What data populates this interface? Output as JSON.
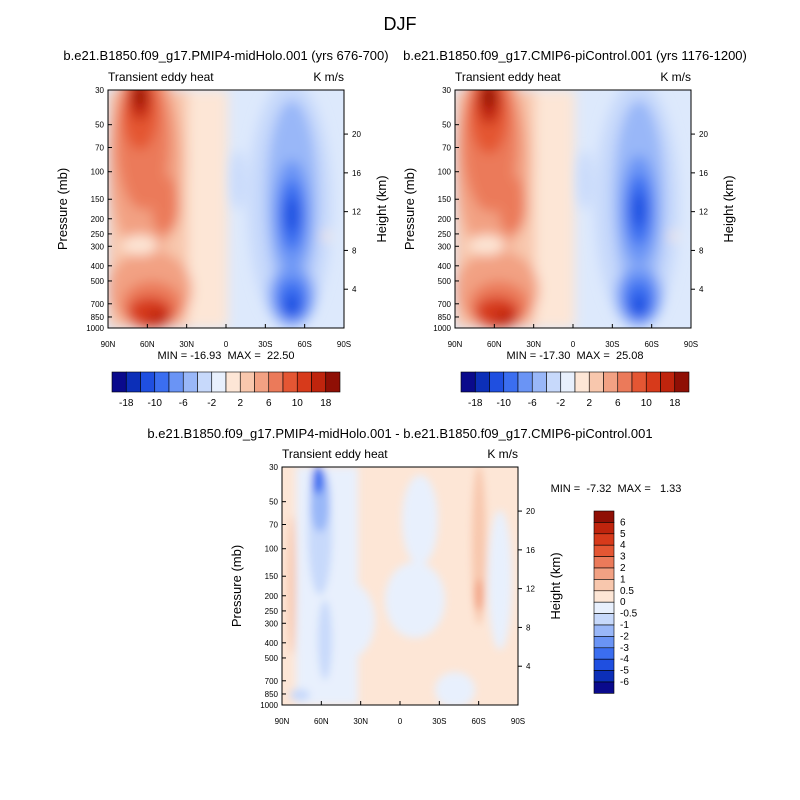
{
  "figure": {
    "title": "DJF"
  },
  "palettes": {
    "main_colors": [
      "#0a0a8c",
      "#0c2fb8",
      "#1f4fe0",
      "#3b6ef0",
      "#6a94f5",
      "#99b7f8",
      "#c7d9fb",
      "#e8f0fd",
      "#fde6d6",
      "#f8c7ad",
      "#f2a183",
      "#eb7a5a",
      "#e45633",
      "#d73a1b",
      "#bf240d",
      "#8f0f05"
    ],
    "diff_colors": [
      "#0a0a8c",
      "#0c2fb8",
      "#1f4fe0",
      "#3b6ef0",
      "#6a94f5",
      "#99b7f8",
      "#c7d9fb",
      "#e8f0fd",
      "#fde6d6",
      "#f8c7ad",
      "#f2a183",
      "#eb7a5a",
      "#e45633",
      "#d73a1b",
      "#bf240d",
      "#8f0f05"
    ]
  },
  "colorbars": {
    "main_labels": [
      "-18",
      "-10",
      "-6",
      "-2",
      "2",
      "6",
      "10",
      "18"
    ],
    "diff_labels": [
      "6",
      "5",
      "4",
      "3",
      "2",
      "1",
      "0.5",
      "0",
      "-0.5",
      "-1",
      "-2",
      "-3",
      "-4",
      "-5",
      "-6"
    ]
  },
  "chart_data": [
    {
      "type": "heatmap",
      "title": "b.e21.B1850.f09_g17.PMIP4-midHolo.001 (yrs 676-700)",
      "left_label": "Transient eddy heat",
      "units": "K m/s",
      "ylabel": "Pressure (mb)",
      "ylabel_right": "Height (km)",
      "x_ticks": [
        "90N",
        "60N",
        "30N",
        "0",
        "30S",
        "60S",
        "90S"
      ],
      "x_range": [
        90,
        -90
      ],
      "y_ticks": [
        "30",
        "50",
        "70",
        "100",
        "150",
        "200",
        "250",
        "300",
        "400",
        "500",
        "700",
        "850",
        "1000"
      ],
      "y_log_scale": true,
      "y_range": [
        1000,
        30
      ],
      "height_ticks": [
        "20",
        "16",
        "12",
        "8",
        "4"
      ],
      "stats": "MIN = -16.93  MAX =  22.50",
      "min": -16.93,
      "max": 22.5
    },
    {
      "type": "heatmap",
      "title": "b.e21.B1850.f09_g17.CMIP6-piControl.001 (yrs 1176-1200)",
      "left_label": "Transient eddy heat",
      "units": "K m/s",
      "ylabel": "Pressure (mb)",
      "ylabel_right": "Height (km)",
      "x_ticks": [
        "90N",
        "60N",
        "30N",
        "0",
        "30S",
        "60S",
        "90S"
      ],
      "x_range": [
        90,
        -90
      ],
      "y_ticks": [
        "30",
        "50",
        "70",
        "100",
        "150",
        "200",
        "250",
        "300",
        "400",
        "500",
        "700",
        "850",
        "1000"
      ],
      "y_log_scale": true,
      "y_range": [
        1000,
        30
      ],
      "height_ticks": [
        "20",
        "16",
        "12",
        "8",
        "4"
      ],
      "stats": "MIN = -17.30  MAX =  25.08",
      "min": -17.3,
      "max": 25.08
    },
    {
      "type": "heatmap",
      "title": "b.e21.B1850.f09_g17.PMIP4-midHolo.001 - b.e21.B1850.f09_g17.CMIP6-piControl.001",
      "left_label": "Transient eddy heat",
      "units": "K m/s",
      "ylabel": "Pressure (mb)",
      "ylabel_right": "Height (km)",
      "x_ticks": [
        "90N",
        "60N",
        "30N",
        "0",
        "30S",
        "60S",
        "90S"
      ],
      "x_range": [
        90,
        -90
      ],
      "y_ticks": [
        "30",
        "50",
        "70",
        "100",
        "150",
        "200",
        "250",
        "300",
        "400",
        "500",
        "700",
        "850",
        "1000"
      ],
      "y_log_scale": true,
      "y_range": [
        1000,
        30
      ],
      "height_ticks": [
        "20",
        "16",
        "12",
        "8",
        "4"
      ],
      "stats": "MIN =  -7.32  MAX =   1.33",
      "min": -7.32,
      "max": 1.33
    }
  ]
}
